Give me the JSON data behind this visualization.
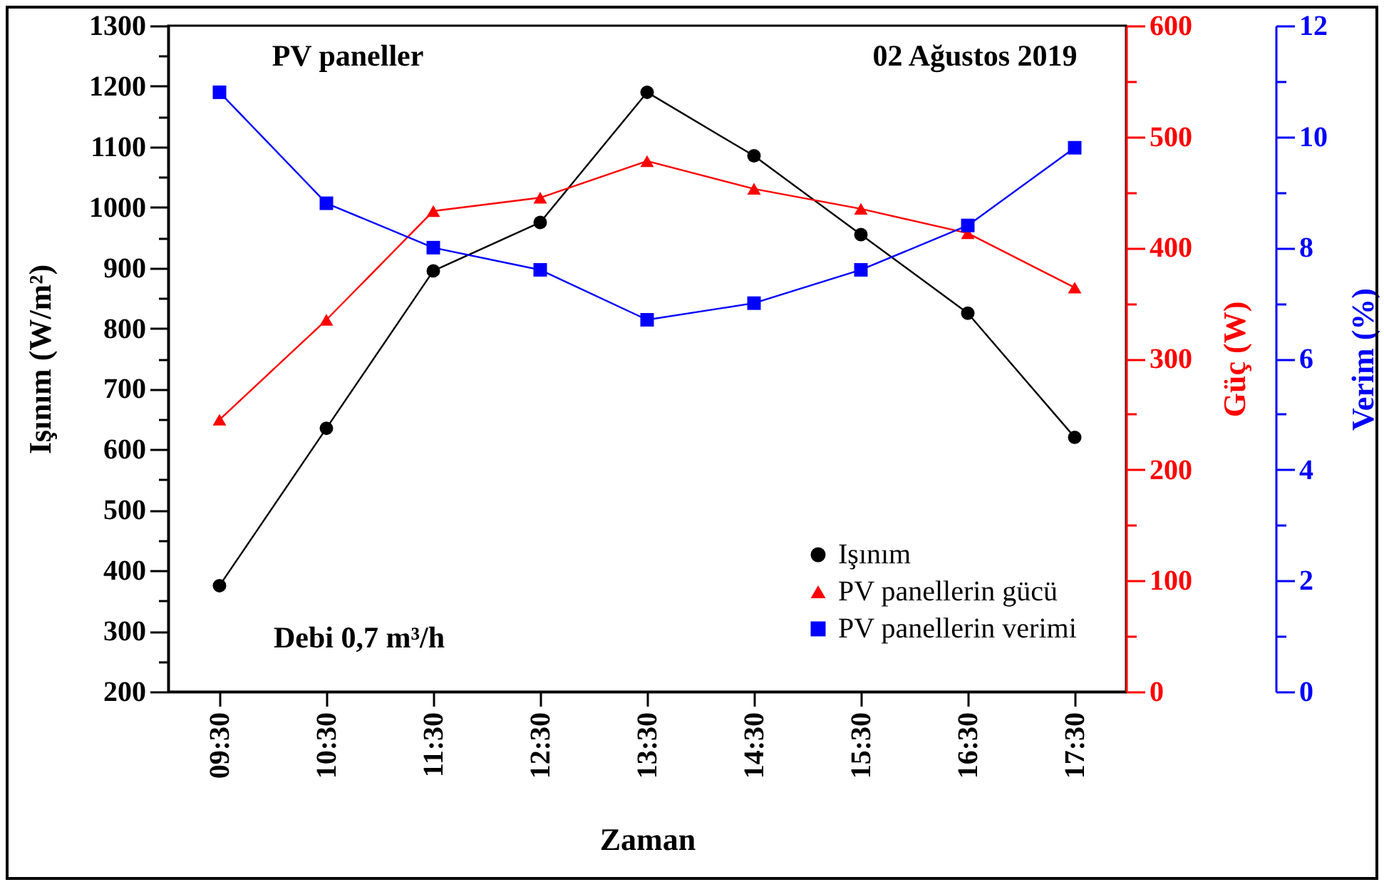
{
  "chart_data": {
    "type": "line",
    "xlabel": "Zaman",
    "ylabel": "Işınım (W/m²)",
    "y2label": "Güç (W)",
    "y3label": "Verim (%)",
    "categories": [
      "09:30",
      "10:30",
      "11:30",
      "12:30",
      "13:30",
      "14:30",
      "15:30",
      "16:30",
      "17:30"
    ],
    "series": [
      {
        "name": "Işınım",
        "color": "#000000",
        "marker": "circle",
        "values": [
          375,
          635,
          895,
          975,
          1190,
          1085,
          955,
          825,
          620
        ]
      },
      {
        "name": "PV panellerin gücü",
        "color": "#ff0000",
        "marker": "triangle",
        "axis": "y2",
        "values": [
          245,
          335,
          433,
          445,
          478,
          453,
          435,
          413,
          364
        ]
      },
      {
        "name": "PV panellerin verimi",
        "color": "#0000ff",
        "marker": "square",
        "axis": "y3",
        "values": [
          10.8,
          8.8,
          8.0,
          7.6,
          6.7,
          7.0,
          7.6,
          8.4,
          9.8
        ]
      }
    ],
    "ylim": [
      200,
      1300
    ],
    "yticks": [
      200,
      {
        "value": 250,
        "label": null
      },
      300,
      {
        "value": 350,
        "label": null
      },
      400,
      {
        "value": 450,
        "label": null
      },
      500,
      {
        "value": 550,
        "label": null
      },
      600,
      {
        "value": 650,
        "label": null
      },
      700,
      {
        "value": 750,
        "label": null
      },
      800,
      {
        "value": 850,
        "label": null
      },
      900,
      {
        "value": 950,
        "label": null
      },
      1000,
      {
        "value": 1050,
        "label": null
      },
      1100,
      {
        "value": 1150,
        "label": null
      },
      1200,
      {
        "value": 1250,
        "label": null
      },
      1300
    ],
    "y2lim": [
      0,
      600
    ],
    "y2ticks": [
      0,
      {
        "value": 50,
        "label": null
      },
      100,
      {
        "value": 150,
        "label": null
      },
      200,
      {
        "value": 250,
        "label": null
      },
      300,
      {
        "value": 350,
        "label": null
      },
      400,
      {
        "value": 450,
        "label": null
      },
      500,
      {
        "value": 550,
        "label": null
      },
      600
    ],
    "y3lim": [
      0,
      12
    ],
    "y3ticks": [
      0,
      {
        "value": 1,
        "label": null
      },
      2,
      {
        "value": 3,
        "label": null
      },
      4,
      {
        "value": 5,
        "label": null
      },
      6,
      {
        "value": 7,
        "label": null
      },
      8,
      {
        "value": 9,
        "label": null
      },
      10,
      {
        "value": 11,
        "label": null
      },
      12
    ],
    "annotations": [
      "PV paneller",
      "02 Ağustos 2019",
      "Debi 0,7 m³/h"
    ],
    "legend": "bottom right",
    "grid": false,
    "line_style": "solid"
  }
}
